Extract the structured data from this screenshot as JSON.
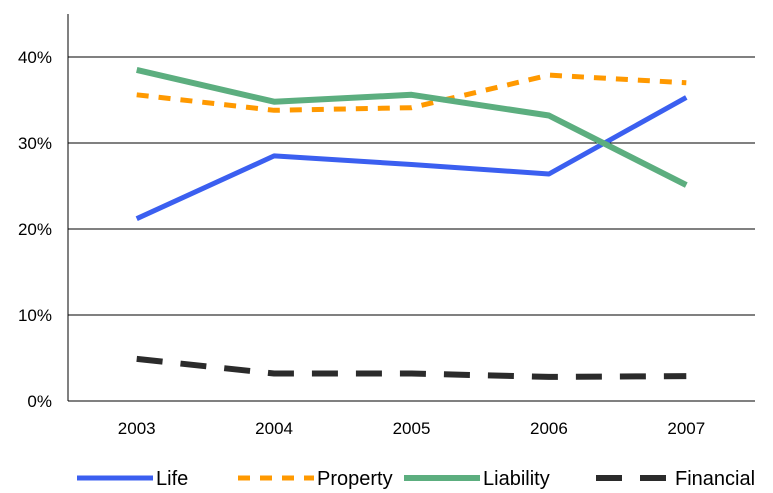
{
  "chart_data": {
    "type": "line",
    "title": "",
    "xlabel": "",
    "ylabel": "",
    "categories": [
      "2003",
      "2004",
      "2005",
      "2006",
      "2007"
    ],
    "ylim": [
      0,
      40
    ],
    "yticks": [
      "0%",
      "10%",
      "20%",
      "30%",
      "40%"
    ],
    "grid": true,
    "legend_position": "bottom",
    "series": [
      {
        "name": "Life",
        "values": [
          21.2,
          28.5,
          27.5,
          26.4,
          35.3
        ],
        "color": "#3b5ff0",
        "style": "solid"
      },
      {
        "name": "Property",
        "values": [
          35.6,
          33.8,
          34.1,
          37.9,
          37.0
        ],
        "color": "#ff9900",
        "style": "dashed"
      },
      {
        "name": "Liability",
        "values": [
          38.5,
          34.8,
          35.6,
          33.2,
          25.1
        ],
        "color": "#5cae7f",
        "style": "solid-thick"
      },
      {
        "name": "Financial",
        "values": [
          4.9,
          3.2,
          3.2,
          2.8,
          2.9
        ],
        "color": "#2b2b2b",
        "style": "long-dash"
      }
    ]
  }
}
